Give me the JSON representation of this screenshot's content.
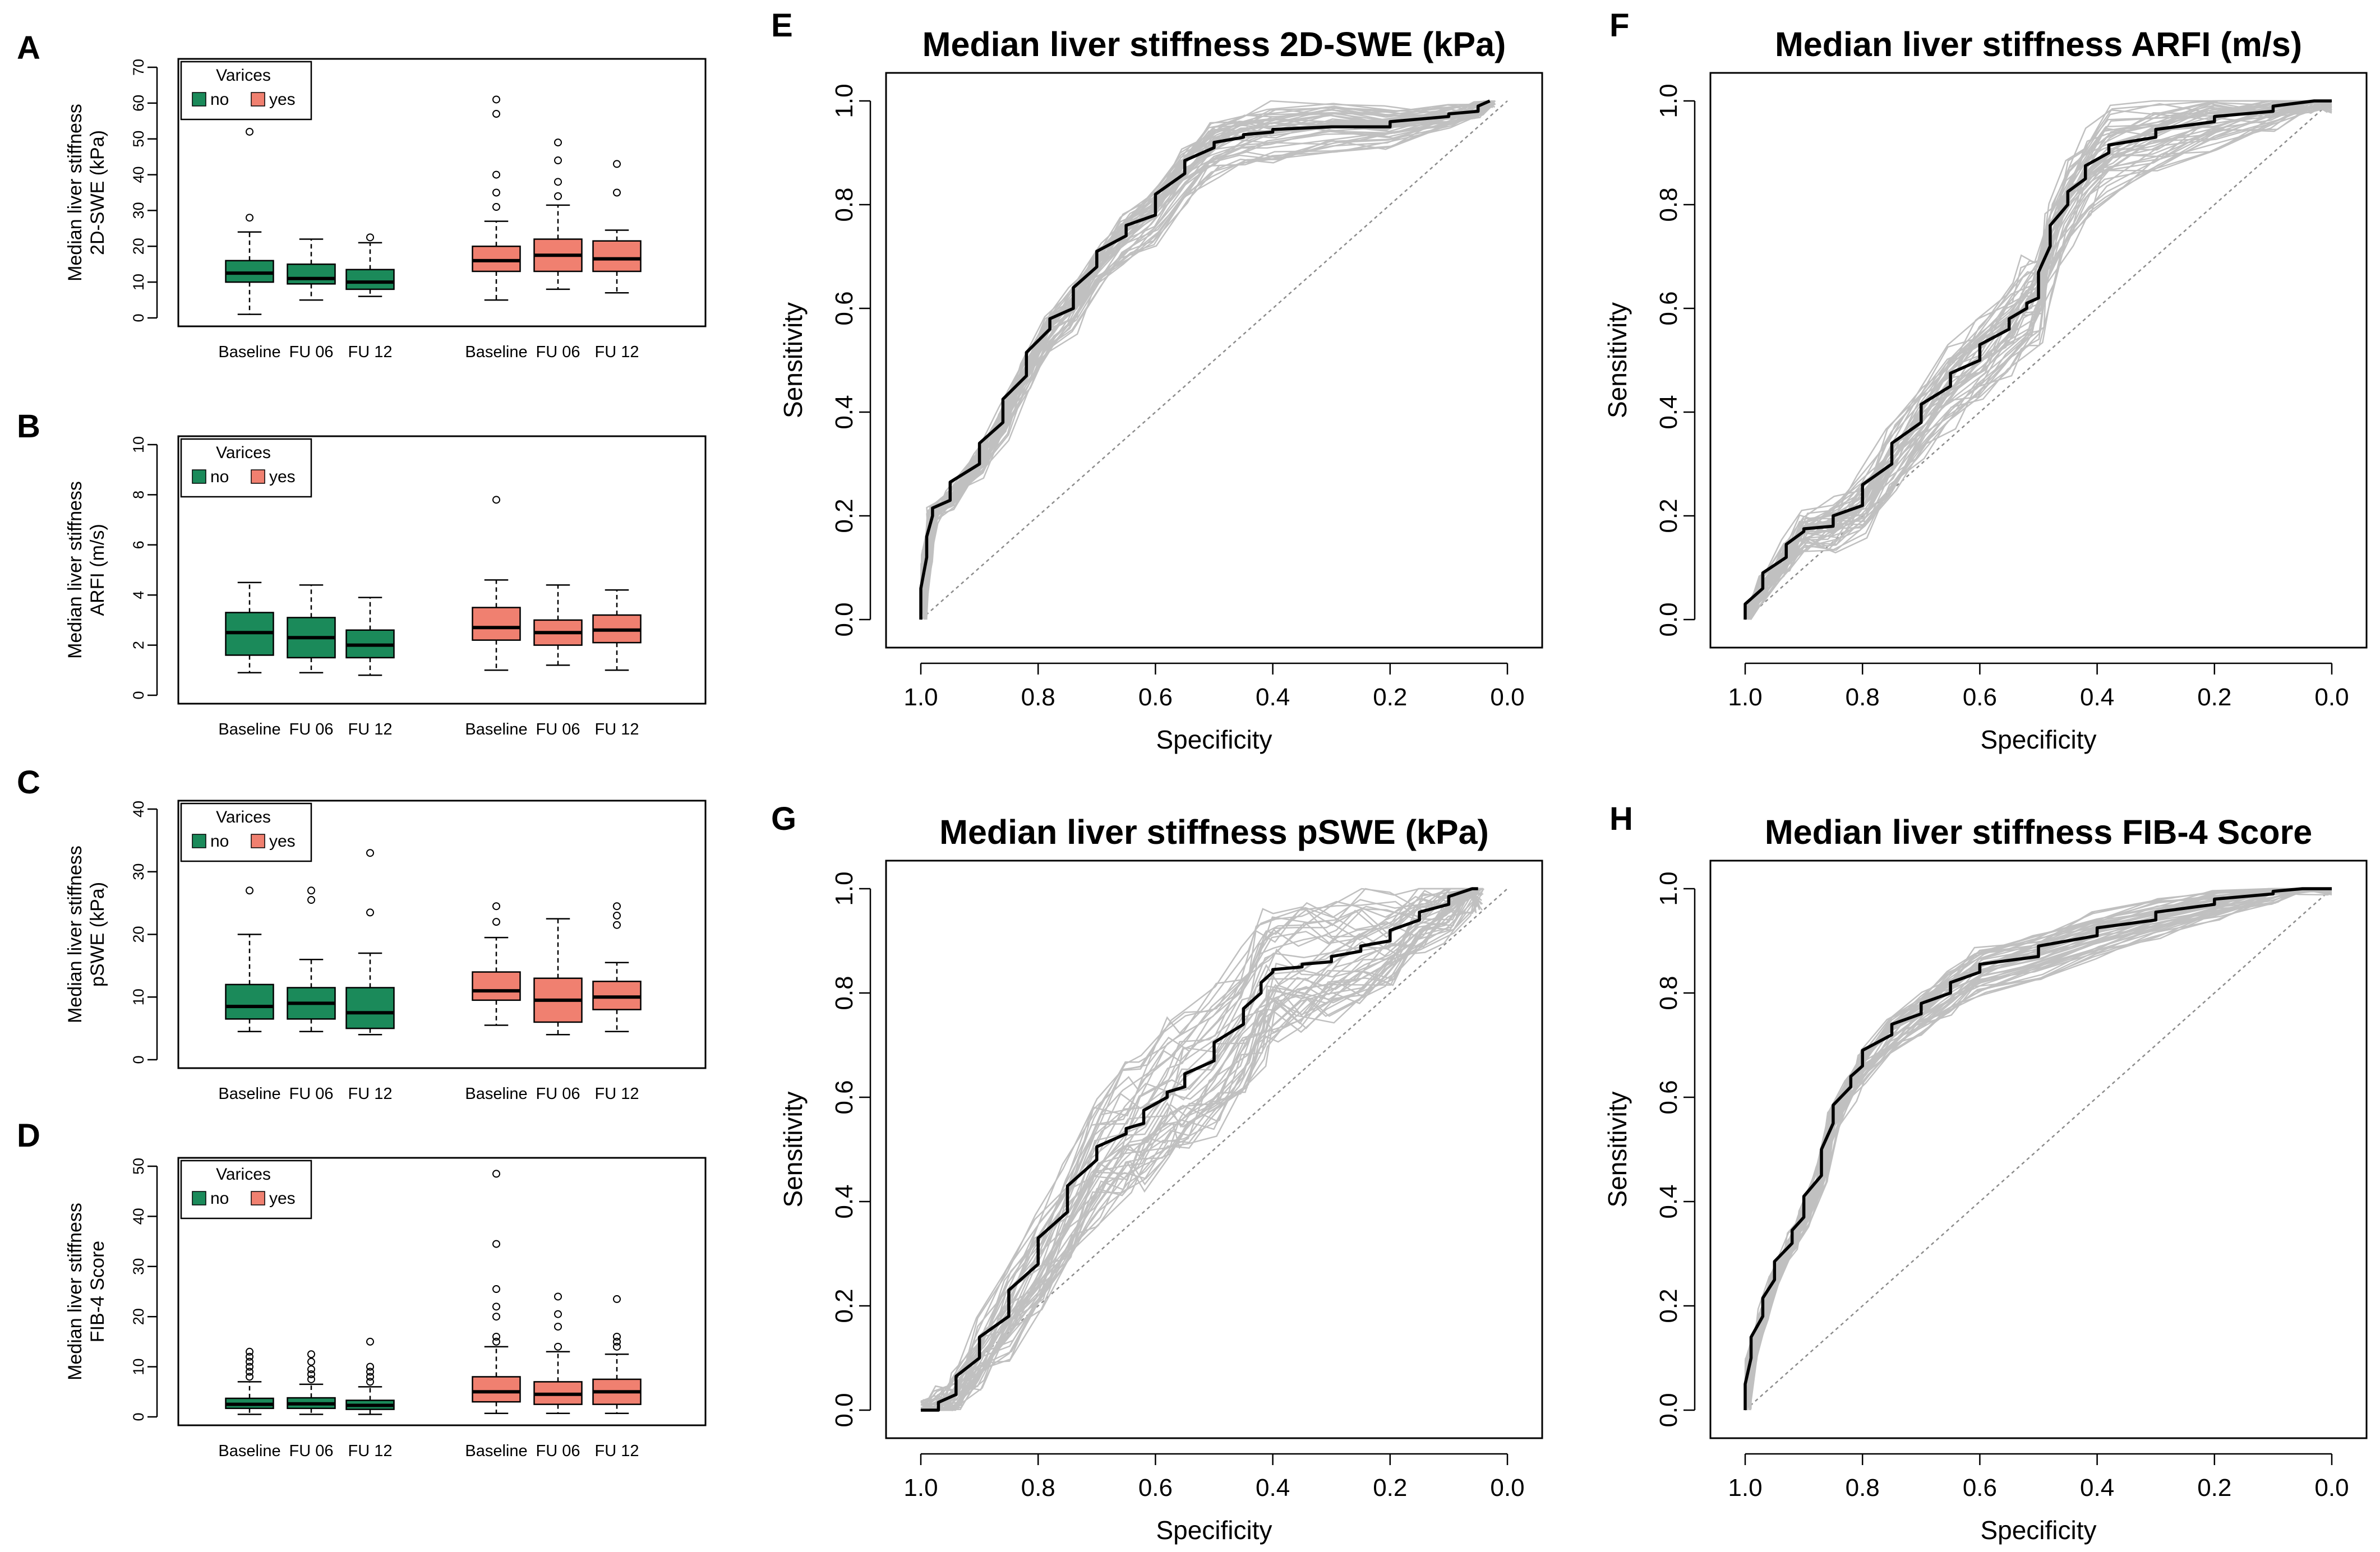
{
  "colors": {
    "no": "#1b8a5a",
    "yes": "#f08070",
    "roc_ref": "#8c8c8c",
    "roc_boot": "#c0c0c0",
    "roc_main": "#000000"
  },
  "legend": {
    "title": "Varices",
    "no": "no",
    "yes": "yes"
  },
  "panel_labels": {
    "A": "A",
    "B": "B",
    "C": "C",
    "D": "D",
    "E": "E",
    "F": "F",
    "G": "G",
    "H": "H"
  },
  "chart_data": [
    {
      "id": "A",
      "type": "box",
      "ylabel_1": "Median liver stiffness",
      "ylabel_2": "2D-SWE (kPa)",
      "ylim": [
        0,
        70
      ],
      "yticks": [
        0,
        10,
        20,
        30,
        40,
        50,
        60,
        70
      ],
      "categories": [
        "Baseline",
        "FU 06",
        "FU 12",
        "Baseline",
        "FU 06",
        "FU 12"
      ],
      "groups": [
        "no",
        "no",
        "no",
        "yes",
        "yes",
        "yes"
      ],
      "boxes": [
        {
          "lw": 1,
          "q1": 10,
          "med": 12.5,
          "q3": 16,
          "uw": 24,
          "out": [
            28,
            52
          ]
        },
        {
          "lw": 5,
          "q1": 9.5,
          "med": 11,
          "q3": 15,
          "uw": 22,
          "out": []
        },
        {
          "lw": 6,
          "q1": 8,
          "med": 10,
          "q3": 13.5,
          "uw": 21,
          "out": [
            22.5
          ]
        },
        {
          "lw": 5,
          "q1": 13,
          "med": 16,
          "q3": 20,
          "uw": 27,
          "out": [
            31,
            35,
            40,
            57,
            61
          ]
        },
        {
          "lw": 8,
          "q1": 13,
          "med": 17.5,
          "q3": 22,
          "uw": 31.5,
          "out": [
            34,
            38,
            44,
            49
          ]
        },
        {
          "lw": 7,
          "q1": 13,
          "med": 16.5,
          "q3": 21.5,
          "uw": 24.5,
          "out": [
            35,
            43
          ]
        }
      ]
    },
    {
      "id": "B",
      "type": "box",
      "ylabel_1": "Median liver stiffness",
      "ylabel_2": "ARFI (m/s)",
      "ylim": [
        0,
        10
      ],
      "yticks": [
        0,
        2,
        4,
        6,
        8,
        10
      ],
      "categories": [
        "Baseline",
        "FU 06",
        "FU 12",
        "Baseline",
        "FU 06",
        "FU 12"
      ],
      "groups": [
        "no",
        "no",
        "no",
        "yes",
        "yes",
        "yes"
      ],
      "boxes": [
        {
          "lw": 0.9,
          "q1": 1.6,
          "med": 2.5,
          "q3": 3.3,
          "uw": 4.5,
          "out": []
        },
        {
          "lw": 0.9,
          "q1": 1.5,
          "med": 2.3,
          "q3": 3.1,
          "uw": 4.4,
          "out": []
        },
        {
          "lw": 0.8,
          "q1": 1.5,
          "med": 2.0,
          "q3": 2.6,
          "uw": 3.9,
          "out": []
        },
        {
          "lw": 1.0,
          "q1": 2.2,
          "med": 2.7,
          "q3": 3.5,
          "uw": 4.6,
          "out": [
            7.8
          ]
        },
        {
          "lw": 1.2,
          "q1": 2.0,
          "med": 2.5,
          "q3": 3.0,
          "uw": 4.4,
          "out": []
        },
        {
          "lw": 1.0,
          "q1": 2.1,
          "med": 2.6,
          "q3": 3.2,
          "uw": 4.2,
          "out": []
        }
      ]
    },
    {
      "id": "C",
      "type": "box",
      "ylabel_1": "Median liver stiffness",
      "ylabel_2": "pSWE (kPa)",
      "ylim": [
        0,
        40
      ],
      "yticks": [
        0,
        10,
        20,
        30,
        40
      ],
      "categories": [
        "Baseline",
        "FU 06",
        "FU 12",
        "Baseline",
        "FU 06",
        "FU 12"
      ],
      "groups": [
        "no",
        "no",
        "no",
        "yes",
        "yes",
        "yes"
      ],
      "boxes": [
        {
          "lw": 4.5,
          "q1": 6.5,
          "med": 8.5,
          "q3": 12,
          "uw": 20,
          "out": [
            27
          ]
        },
        {
          "lw": 4.5,
          "q1": 6.5,
          "med": 9,
          "q3": 11.5,
          "uw": 16,
          "out": [
            25.5,
            27
          ]
        },
        {
          "lw": 4,
          "q1": 5,
          "med": 7.5,
          "q3": 11.5,
          "uw": 17,
          "out": [
            23.5,
            33
          ]
        },
        {
          "lw": 5.5,
          "q1": 9.5,
          "med": 11,
          "q3": 14,
          "uw": 19.5,
          "out": [
            22,
            24.5
          ]
        },
        {
          "lw": 4,
          "q1": 6,
          "med": 9.5,
          "q3": 13,
          "uw": 22.5,
          "out": []
        },
        {
          "lw": 4.5,
          "q1": 8,
          "med": 10,
          "q3": 12.5,
          "uw": 15.5,
          "out": [
            21.5,
            23,
            24.5
          ]
        }
      ]
    },
    {
      "id": "D",
      "type": "box",
      "ylabel_1": "Median liver stiffness",
      "ylabel_2": "FIB-4 Score",
      "ylim": [
        0,
        50
      ],
      "yticks": [
        0,
        10,
        20,
        30,
        40,
        50
      ],
      "categories": [
        "Baseline",
        "FU 06",
        "FU 12",
        "Baseline",
        "FU 06",
        "FU 12"
      ],
      "groups": [
        "no",
        "no",
        "no",
        "yes",
        "yes",
        "yes"
      ],
      "boxes": [
        {
          "lw": 0.5,
          "q1": 1.7,
          "med": 2.5,
          "q3": 3.7,
          "uw": 7,
          "out": [
            8,
            9,
            10,
            11,
            12,
            13
          ]
        },
        {
          "lw": 0.5,
          "q1": 1.7,
          "med": 2.6,
          "q3": 3.8,
          "uw": 6.5,
          "out": [
            7.5,
            8.5,
            9.5,
            11,
            12.5
          ]
        },
        {
          "lw": 0.5,
          "q1": 1.5,
          "med": 2.3,
          "q3": 3.3,
          "uw": 6,
          "out": [
            7,
            8,
            9,
            10,
            15
          ]
        },
        {
          "lw": 0.7,
          "q1": 3,
          "med": 5,
          "q3": 8,
          "uw": 14,
          "out": [
            15,
            16,
            20,
            22,
            25.5,
            34.5,
            48.5
          ]
        },
        {
          "lw": 0.7,
          "q1": 2.5,
          "med": 4.5,
          "q3": 7,
          "uw": 13,
          "out": [
            14,
            18,
            20.5,
            24
          ]
        },
        {
          "lw": 0.7,
          "q1": 2.5,
          "med": 5,
          "q3": 7.5,
          "uw": 12.5,
          "out": [
            14,
            15,
            16,
            23.5
          ]
        }
      ]
    },
    {
      "id": "E",
      "type": "line",
      "title": "Median liver stiffness  2D-SWE (kPa)",
      "xlabel": "Specificity",
      "ylabel": "Sensitivity",
      "xlim": [
        1.0,
        0.0
      ],
      "ylim": [
        0.0,
        1.0
      ],
      "xtick_labels": [
        "1.0",
        "0.8",
        "0.6",
        "0.4",
        "0.2",
        "0.0"
      ],
      "ytick_labels": [
        "0.0",
        "0.2",
        "0.4",
        "0.6",
        "0.8",
        "1.0"
      ],
      "ref_diagonal": true,
      "bootstrap_band": 0.05,
      "specificity": [
        1.0,
        0.99,
        0.98,
        0.95,
        0.9,
        0.86,
        0.82,
        0.78,
        0.74,
        0.7,
        0.65,
        0.6,
        0.55,
        0.5,
        0.45,
        0.4,
        0.3,
        0.2,
        0.1,
        0.05,
        0.03
      ],
      "sensitivity": [
        0.0,
        0.12,
        0.2,
        0.23,
        0.3,
        0.38,
        0.47,
        0.56,
        0.6,
        0.68,
        0.74,
        0.78,
        0.86,
        0.91,
        0.93,
        0.94,
        0.95,
        0.95,
        0.97,
        0.98,
        1.0
      ]
    },
    {
      "id": "F",
      "type": "line",
      "title": "Median liver stiffness ARFI (m/s)",
      "xlabel": "Specificity",
      "ylabel": "Sensitivity",
      "xlim": [
        1.0,
        0.0
      ],
      "ylim": [
        0.0,
        1.0
      ],
      "xtick_labels": [
        "1.0",
        "0.8",
        "0.6",
        "0.4",
        "0.2",
        "0.0"
      ],
      "ytick_labels": [
        "0.0",
        "0.2",
        "0.4",
        "0.6",
        "0.8",
        "1.0"
      ],
      "ref_diagonal": true,
      "bootstrap_band": 0.08,
      "specificity": [
        1.0,
        0.97,
        0.93,
        0.9,
        0.85,
        0.8,
        0.75,
        0.7,
        0.65,
        0.6,
        0.55,
        0.52,
        0.5,
        0.48,
        0.45,
        0.42,
        0.38,
        0.3,
        0.2,
        0.1,
        0.03,
        0.0
      ],
      "sensitivity": [
        0.0,
        0.06,
        0.12,
        0.17,
        0.18,
        0.22,
        0.3,
        0.38,
        0.45,
        0.5,
        0.56,
        0.6,
        0.62,
        0.72,
        0.8,
        0.85,
        0.9,
        0.93,
        0.96,
        0.98,
        1.0,
        1.0
      ]
    },
    {
      "id": "G",
      "type": "line",
      "title": "Median liver stiffness pSWE (kPa)",
      "xlabel": "Specificity",
      "ylabel": "Sensitivity",
      "xlim": [
        1.0,
        0.0
      ],
      "ylim": [
        0.0,
        1.0
      ],
      "xtick_labels": [
        "1.0",
        "0.8",
        "0.6",
        "0.4",
        "0.2",
        "0.0"
      ],
      "ytick_labels": [
        "0.0",
        "0.2",
        "0.4",
        "0.6",
        "0.8",
        "1.0"
      ],
      "ref_diagonal": true,
      "bootstrap_band": 0.14,
      "specificity": [
        1.0,
        0.97,
        0.94,
        0.9,
        0.85,
        0.8,
        0.75,
        0.7,
        0.65,
        0.62,
        0.58,
        0.55,
        0.5,
        0.45,
        0.42,
        0.4,
        0.35,
        0.3,
        0.25,
        0.2,
        0.15,
        0.1,
        0.06,
        0.05
      ],
      "sensitivity": [
        0.0,
        0.0,
        0.03,
        0.1,
        0.18,
        0.28,
        0.38,
        0.48,
        0.53,
        0.55,
        0.6,
        0.62,
        0.67,
        0.74,
        0.8,
        0.84,
        0.85,
        0.86,
        0.88,
        0.9,
        0.94,
        0.97,
        1.0,
        1.0
      ]
    },
    {
      "id": "H",
      "type": "line",
      "title": "Median liver stiffness FIB-4 Score",
      "xlabel": "Specificity",
      "ylabel": "Sensitivity",
      "xlim": [
        1.0,
        0.0
      ],
      "ylim": [
        0.0,
        1.0
      ],
      "xtick_labels": [
        "1.0",
        "0.8",
        "0.6",
        "0.4",
        "0.2",
        "0.0"
      ],
      "ytick_labels": [
        "0.0",
        "0.2",
        "0.4",
        "0.6",
        "0.8",
        "1.0"
      ],
      "ref_diagonal": true,
      "bootstrap_band": 0.04,
      "specificity": [
        1.0,
        0.99,
        0.97,
        0.95,
        0.92,
        0.9,
        0.87,
        0.85,
        0.82,
        0.8,
        0.75,
        0.7,
        0.65,
        0.6,
        0.5,
        0.4,
        0.3,
        0.2,
        0.1,
        0.05,
        0.0
      ],
      "sensitivity": [
        0.0,
        0.1,
        0.18,
        0.25,
        0.32,
        0.37,
        0.45,
        0.55,
        0.62,
        0.66,
        0.72,
        0.76,
        0.8,
        0.84,
        0.87,
        0.91,
        0.94,
        0.97,
        0.99,
        1.0,
        1.0
      ]
    }
  ]
}
